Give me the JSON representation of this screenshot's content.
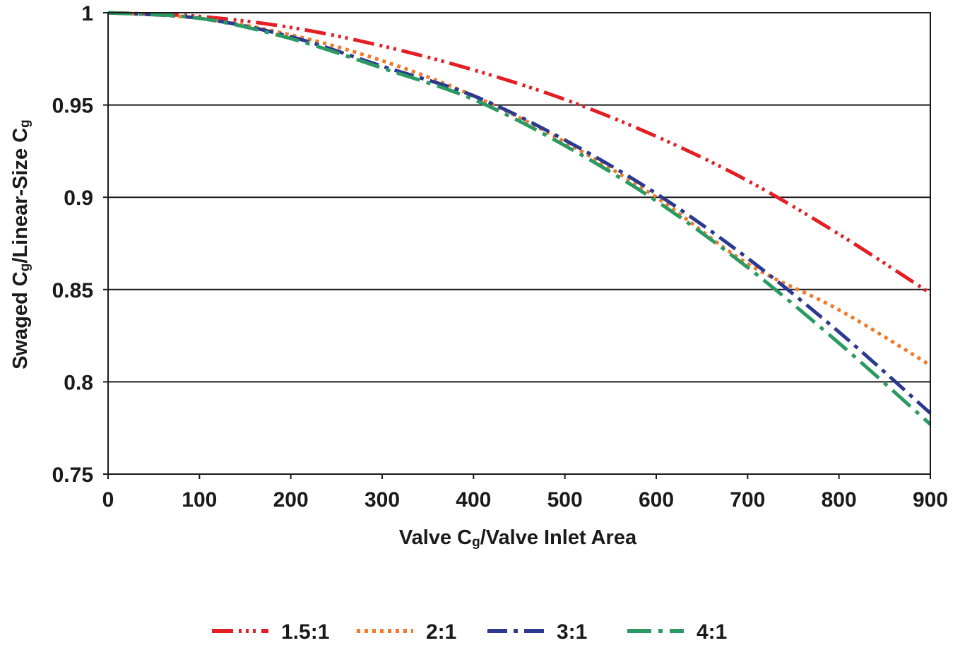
{
  "chart_data": {
    "type": "line",
    "xlabel_main": "Valve C",
    "xlabel_sub": "g",
    "xlabel_rest": "/Valve Inlet Area",
    "ylabel_a": "Swaged C",
    "ylabel_sub1": "g",
    "ylabel_b": "/Linear-Size C",
    "ylabel_sub2": "g",
    "xlim": [
      0,
      900
    ],
    "ylim": [
      0.75,
      1
    ],
    "x_ticks": [
      0,
      100,
      200,
      300,
      400,
      500,
      600,
      700,
      800,
      900
    ],
    "y_ticks": [
      0.75,
      0.8,
      0.85,
      0.9,
      0.95,
      1
    ],
    "x_tick_labels": [
      "0",
      "100",
      "200",
      "300",
      "400",
      "500",
      "600",
      "700",
      "800",
      "900"
    ],
    "y_tick_labels": [
      "0.75",
      "0.8",
      "0.85",
      "0.9",
      "0.95",
      "1"
    ],
    "grid": "horizontal",
    "legend_position": "bottom",
    "x": [
      0,
      100,
      200,
      300,
      400,
      500,
      600,
      700,
      800,
      900
    ],
    "series": [
      {
        "name": "1.5:1",
        "color": "#e31e24",
        "dash": "30 8 4 6 4 6 4 8",
        "values": [
          1.0,
          0.998,
          0.992,
          0.982,
          0.969,
          0.953,
          0.933,
          0.909,
          0.88,
          0.848
        ]
      },
      {
        "name": "2:1",
        "color": "#f07a2a",
        "dash": "5 6",
        "values": [
          1.0,
          0.997,
          0.988,
          0.974,
          0.955,
          0.93,
          0.9,
          0.864,
          0.839,
          0.809
        ]
      },
      {
        "name": "3:1",
        "color": "#2b3990",
        "dash": "28 9 6 9",
        "values": [
          1.0,
          0.997,
          0.987,
          0.971,
          0.955,
          0.931,
          0.902,
          0.867,
          0.827,
          0.783
        ]
      },
      {
        "name": "4:1",
        "color": "#2a9a62",
        "dash": "34 10 6 10",
        "values": [
          1.0,
          0.997,
          0.986,
          0.97,
          0.953,
          0.928,
          0.898,
          0.862,
          0.821,
          0.777
        ]
      }
    ]
  }
}
